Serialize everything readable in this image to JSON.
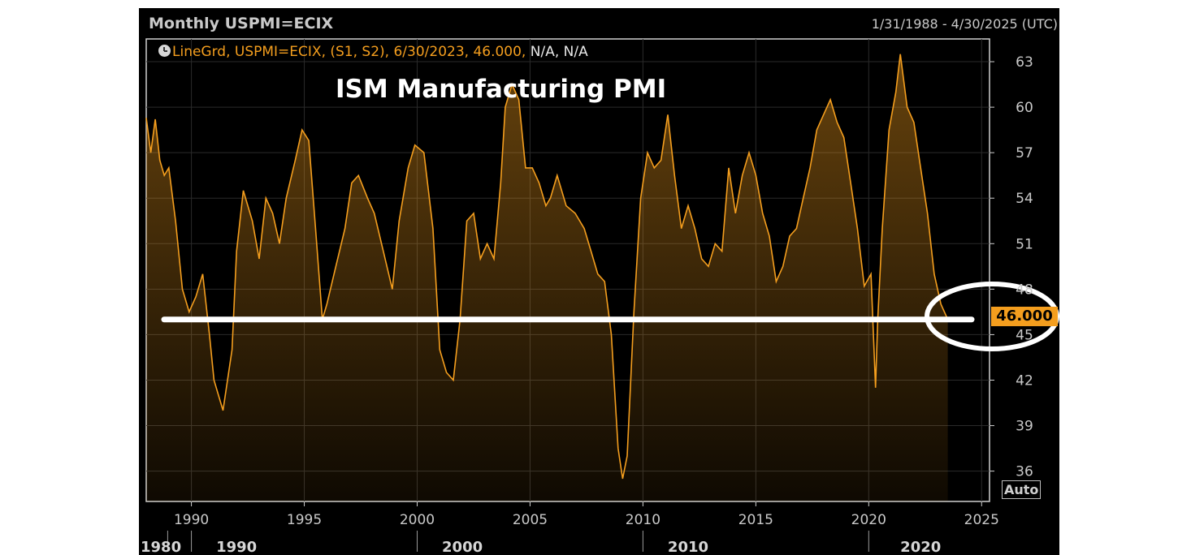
{
  "header": {
    "title": "Monthly USPMI=ECIX",
    "date_range": "1/31/1988 - 4/30/2025 (UTC)"
  },
  "legend": {
    "series_text": "LineGrd, USPMI=ECIX, (S1, S2), 6/30/2023, 46.000,",
    "na_text": " N/A, N/A"
  },
  "annotation_title": "ISM Manufacturing PMI",
  "last_value_label": "46.000",
  "auto_button": "Auto",
  "colors": {
    "series": "#f49e1e",
    "background": "#000000",
    "axis_text": "#c9c9c9",
    "annotation": "#ffffff"
  },
  "chart_data": {
    "type": "area",
    "title": "ISM Manufacturing PMI",
    "x_axis": {
      "major_ticks": [
        "1990",
        "1995",
        "2000",
        "2005",
        "2010",
        "2015",
        "2020",
        "2025"
      ],
      "decade_labels": [
        "1980",
        "1990",
        "2000",
        "2010",
        "2020"
      ],
      "range": [
        1988.0,
        2025.35
      ]
    },
    "y_axis": {
      "ticks": [
        "63",
        "60",
        "57",
        "54",
        "51",
        "48",
        "45",
        "42",
        "39",
        "36"
      ],
      "range": [
        34,
        64.5
      ],
      "position": "right"
    },
    "grid": true,
    "reference_line": {
      "value": 46.0,
      "label": "46.000"
    },
    "last_point": {
      "date": "6/30/2023",
      "value": 46.0
    },
    "series": [
      {
        "name": "USPMI=ECIX",
        "x": [
          1988.0,
          1988.2,
          1988.4,
          1988.6,
          1988.8,
          1989.0,
          1989.3,
          1989.6,
          1989.9,
          1990.2,
          1990.5,
          1990.8,
          1991.0,
          1991.4,
          1991.8,
          1992.0,
          1992.3,
          1992.7,
          1993.0,
          1993.3,
          1993.6,
          1993.9,
          1994.2,
          1994.6,
          1994.9,
          1995.2,
          1995.5,
          1995.8,
          1996.0,
          1996.4,
          1996.8,
          1997.1,
          1997.4,
          1997.8,
          1998.1,
          1998.5,
          1998.9,
          1999.2,
          1999.6,
          1999.9,
          2000.3,
          2000.7,
          2001.0,
          2001.3,
          2001.6,
          2001.9,
          2002.2,
          2002.5,
          2002.8,
          2003.1,
          2003.4,
          2003.7,
          2003.9,
          2004.2,
          2004.5,
          2004.8,
          2005.1,
          2005.4,
          2005.7,
          2005.9,
          2006.2,
          2006.6,
          2007.0,
          2007.4,
          2007.7,
          2008.0,
          2008.3,
          2008.6,
          2008.9,
          2009.1,
          2009.3,
          2009.6,
          2009.9,
          2010.2,
          2010.5,
          2010.8,
          2011.1,
          2011.4,
          2011.7,
          2012.0,
          2012.3,
          2012.6,
          2012.9,
          2013.2,
          2013.5,
          2013.8,
          2014.1,
          2014.4,
          2014.7,
          2015.0,
          2015.3,
          2015.6,
          2015.9,
          2016.2,
          2016.5,
          2016.8,
          2017.1,
          2017.4,
          2017.7,
          2018.0,
          2018.3,
          2018.6,
          2018.9,
          2019.2,
          2019.5,
          2019.8,
          2020.1,
          2020.3,
          2020.4,
          2020.6,
          2020.9,
          2021.2,
          2021.4,
          2021.7,
          2022.0,
          2022.3,
          2022.6,
          2022.9,
          2023.2,
          2023.5
        ],
        "values": [
          59.3,
          57.0,
          59.2,
          56.5,
          55.5,
          56.0,
          52.5,
          48.0,
          46.5,
          47.5,
          49.0,
          45.0,
          42.0,
          40.0,
          44.0,
          50.5,
          54.5,
          52.5,
          50.0,
          54.0,
          53.0,
          51.0,
          54.0,
          56.5,
          58.5,
          57.8,
          52.0,
          46.0,
          47.0,
          49.5,
          52.0,
          55.0,
          55.5,
          54.0,
          53.0,
          50.5,
          48.0,
          52.5,
          56.0,
          57.5,
          57.0,
          52.0,
          44.0,
          42.5,
          42.0,
          46.0,
          52.5,
          53.0,
          50.0,
          51.0,
          50.0,
          55.0,
          60.0,
          61.5,
          60.5,
          56.0,
          56.0,
          55.0,
          53.5,
          54.0,
          55.5,
          53.5,
          53.0,
          52.0,
          50.5,
          49.0,
          48.5,
          45.0,
          37.5,
          35.5,
          37.0,
          46.5,
          54.0,
          57.0,
          56.0,
          56.5,
          59.5,
          55.5,
          52.0,
          53.5,
          52.0,
          50.0,
          49.5,
          51.0,
          50.5,
          56.0,
          53.0,
          55.5,
          57.0,
          55.5,
          53.0,
          51.5,
          48.5,
          49.5,
          51.5,
          52.0,
          54.0,
          56.0,
          58.5,
          59.5,
          60.5,
          59.0,
          58.0,
          55.0,
          52.0,
          48.2,
          49.0,
          41.5,
          46.0,
          52.0,
          58.5,
          61.0,
          63.5,
          60.0,
          59.0,
          56.0,
          53.0,
          49.0,
          47.0,
          46.0
        ]
      }
    ]
  }
}
